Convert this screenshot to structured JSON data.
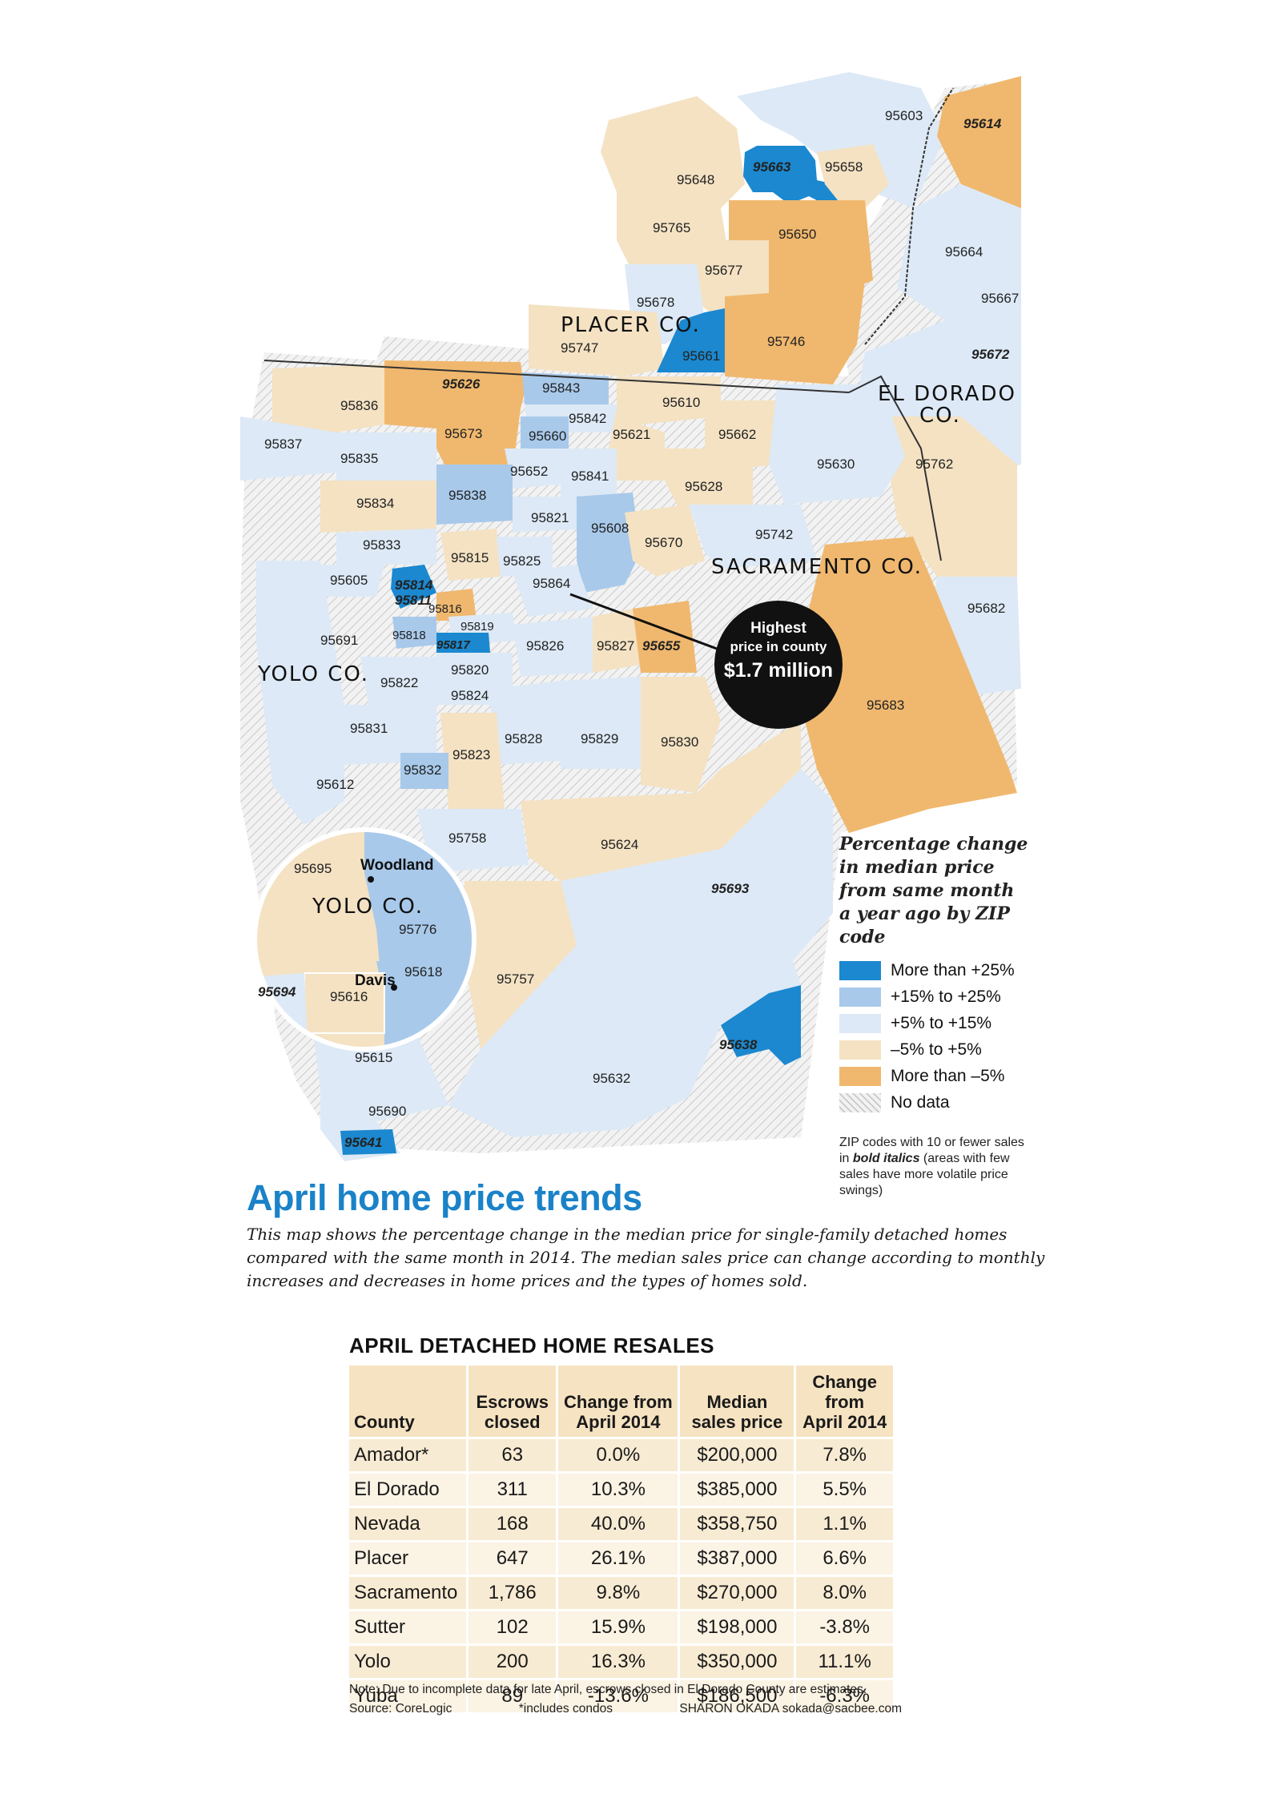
{
  "colors": {
    "more_than_25": "#1b88cf",
    "p15_to_25": "#a8c9ea",
    "p5_to_15": "#dde9f6",
    "m5_to_5": "#f4e2c3",
    "less_than_m5": "#f0b86e",
    "no_data": "#e6e6e6",
    "headline": "#1a82c8",
    "table_fill": "#f6e3c2"
  },
  "map": {
    "counties": {
      "placer": "PLACER CO.",
      "el_dorado_1": "EL DORADO",
      "el_dorado_2": "CO.",
      "sacramento": "SACRAMENTO CO.",
      "yolo": "YOLO CO.",
      "yolo_inset": "YOLO CO."
    },
    "places": {
      "woodland": "Woodland",
      "davis": "Davis"
    },
    "callout": {
      "line1": "Highest",
      "line2": "price in county",
      "line3": "$1.7 million"
    },
    "zips": {
      "z95603": "95603",
      "z95614": "95614",
      "z95663": "95663",
      "z95658": "95658",
      "z95648": "95648",
      "z95765": "95765",
      "z95650": "95650",
      "z95664": "95664",
      "z95677": "95677",
      "z95678": "95678",
      "z95667": "95667",
      "z95747": "95747",
      "z95661": "95661",
      "z95746": "95746",
      "z95672": "95672",
      "z95626": "95626",
      "z95843": "95843",
      "z95836": "95836",
      "z95842": "95842",
      "z95610": "95610",
      "z95673": "95673",
      "z95660": "95660",
      "z95621": "95621",
      "z95662": "95662",
      "z95837": "95837",
      "z95835": "95835",
      "z95652": "95652",
      "z95841": "95841",
      "z95630": "95630",
      "z95762": "95762",
      "z95838": "95838",
      "z95628": "95628",
      "z95834": "95834",
      "z95821": "95821",
      "z95608": "95608",
      "z95742": "95742",
      "z95833": "95833",
      "z95670": "95670",
      "z95815": "95815",
      "z95825": "95825",
      "z95605": "95605",
      "z95814": "95814",
      "z95811": "95811",
      "z95864": "95864",
      "z95816": "95816",
      "z95682": "95682",
      "z95819": "95819",
      "z95691": "95691",
      "z95818": "95818",
      "z95817": "95817",
      "z95826": "95826",
      "z95827": "95827",
      "z95655": "95655",
      "z95820": "95820",
      "z95822": "95822",
      "z95824": "95824",
      "z95683": "95683",
      "z95831": "95831",
      "z95828": "95828",
      "z95829": "95829",
      "z95830": "95830",
      "z95823": "95823",
      "z95832": "95832",
      "z95612": "95612",
      "z95758": "95758",
      "z95624": "95624",
      "z95695": "95695",
      "z95693": "95693",
      "z95776": "95776",
      "z95618": "95618",
      "z95757": "95757",
      "z95694": "95694",
      "z95616": "95616",
      "z95638": "95638",
      "z95615": "95615",
      "z95632": "95632",
      "z95690": "95690",
      "z95641": "95641"
    }
  },
  "legend": {
    "title": "Percentage change in median price from same month a year ago by ZIP code",
    "items": [
      {
        "label": "More than +25%",
        "color": "#1b88cf"
      },
      {
        "label": "+15% to +25%",
        "color": "#a8c9ea"
      },
      {
        "label": "+5% to +15%",
        "color": "#dde9f6"
      },
      {
        "label": "–5% to +5%",
        "color": "#f4e2c3"
      },
      {
        "label": "More than –5%",
        "color": "#f0b86e"
      },
      {
        "label": "No data",
        "color": "#e6e6e6"
      }
    ],
    "note_1": "ZIP codes with 10 or fewer sales in ",
    "note_bold": "bold italics",
    "note_2": " (areas with few sales have more volatile price swings)"
  },
  "headline": "April home price trends",
  "dek": "This map shows the percentage change in the median price for single-family detached homes compared with the same month in 2014. The median sales price can change according to monthly increases and decreases in home prices and the types of homes sold.",
  "table": {
    "title": "APRIL DETACHED HOME RESALES",
    "headers": {
      "county": "County",
      "escrows_1": "Escrows",
      "escrows_2": "closed",
      "change_1": "Change from",
      "change_2": "April 2014",
      "median_1": "Median",
      "median_2": "sales price",
      "pchange_1": "Change from",
      "pchange_2": "April 2014"
    },
    "rows": [
      {
        "county": "Amador*",
        "escrows": "63",
        "change": "0.0%",
        "median": "$200,000",
        "pchange": "7.8%"
      },
      {
        "county": "El Dorado",
        "escrows": "311",
        "change": "10.3%",
        "median": "$385,000",
        "pchange": "5.5%"
      },
      {
        "county": "Nevada",
        "escrows": "168",
        "change": "40.0%",
        "median": "$358,750",
        "pchange": "1.1%"
      },
      {
        "county": "Placer",
        "escrows": "647",
        "change": "26.1%",
        "median": "$387,000",
        "pchange": "6.6%"
      },
      {
        "county": "Sacramento",
        "escrows": "1,786",
        "change": "9.8%",
        "median": "$270,000",
        "pchange": "8.0%"
      },
      {
        "county": "Sutter",
        "escrows": "102",
        "change": "15.9%",
        "median": "$198,000",
        "pchange": "-3.8%"
      },
      {
        "county": "Yolo",
        "escrows": "200",
        "change": "16.3%",
        "median": "$350,000",
        "pchange": "11.1%"
      },
      {
        "county": "Yuba",
        "escrows": "89",
        "change": "-13.6%",
        "median": "$186,500",
        "pchange": "-6.3%"
      }
    ]
  },
  "notes": {
    "note": "Note: Due to incomplete data for late April, escrows closed in El Dorado County are estimates.",
    "source": "Source: CoreLogic",
    "condos": "*includes condos",
    "credit": "SHARON OKADA sokada@sacbee.com"
  }
}
